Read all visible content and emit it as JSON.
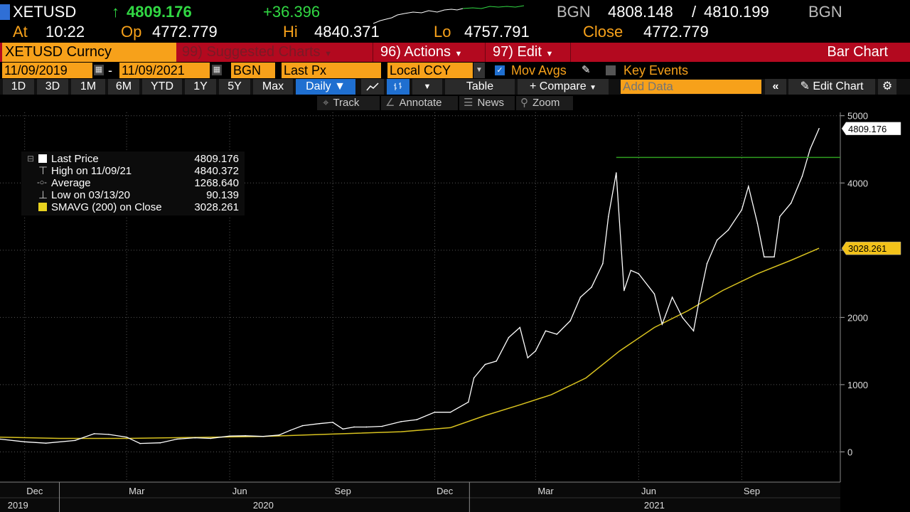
{
  "header": {
    "ticker": "XETUSD",
    "last_price": "4809.176",
    "change": "+36.396",
    "bid_src": "BGN",
    "bid_ask": "4808.148",
    "ask": "4810.199",
    "ask_src": "BGN",
    "time_label": "At",
    "time": "10:22",
    "open_label": "Op",
    "open": "4772.779",
    "high_label": "Hi",
    "high": "4840.371",
    "low_label": "Lo",
    "low": "4757.791",
    "close_label": "Close",
    "close": "4772.779"
  },
  "menubar": {
    "security": "XETUSD Curncy",
    "suggested": "99) Suggested Charts",
    "actions": "96) Actions",
    "edit": "97) Edit",
    "chart_type": "Bar Chart"
  },
  "settings": {
    "start_date": "11/09/2019",
    "end_date": "11/09/2021",
    "dash": "-",
    "source": "BGN",
    "field": "Last Px",
    "currency": "Local CCY",
    "mov_avgs": "Mov Avgs",
    "key_events": "Key Events"
  },
  "toolbar": {
    "periods": [
      "1D",
      "3D",
      "1M",
      "6M",
      "YTD",
      "1Y",
      "5Y",
      "Max"
    ],
    "frequency": "Daily",
    "table": "Table",
    "compare": "+ Compare",
    "add_data_placeholder": "Add Data",
    "edit_chart": "Edit Chart"
  },
  "chart_tools": {
    "track": "Track",
    "annotate": "Annotate",
    "news": "News",
    "zoom": "Zoom"
  },
  "legend": {
    "rows": [
      {
        "label": "Last Price",
        "value": "4809.176"
      },
      {
        "label": "High on 11/09/21",
        "value": "4840.372"
      },
      {
        "label": "Average",
        "value": "1268.640"
      },
      {
        "label": "Low on 03/13/20",
        "value": "90.139"
      },
      {
        "label": "SMAVG (200)  on Close",
        "value": "3028.261"
      }
    ]
  },
  "colors": {
    "amber": "#f7a11a",
    "price_line": "#ffffff",
    "sma_line": "#d8c21f",
    "resistance_line": "#2f9e1f",
    "menubar_red": "#b3091f",
    "toolbar_selected": "#1f6fd0"
  },
  "chart_data": {
    "type": "line",
    "title": "",
    "xlabel": "",
    "ylabel": "",
    "ylim": [
      -450,
      5050
    ],
    "y_ticks": [
      0,
      1000,
      2000,
      3000,
      4000,
      5000
    ],
    "x_month_labels": [
      "Dec",
      "Mar",
      "Jun",
      "Sep",
      "Dec",
      "Mar",
      "Jun",
      "Sep"
    ],
    "x_year_labels": [
      "2019",
      "2020",
      "2021"
    ],
    "last_price_tag": "4809.176",
    "sma_tag": "3028.261",
    "resistance_level": 4380,
    "series": [
      {
        "name": "Last Price",
        "x": [
          "2019-11-09",
          "2019-12-01",
          "2019-12-20",
          "2020-01-15",
          "2020-02-01",
          "2020-02-14",
          "2020-03-01",
          "2020-03-13",
          "2020-03-31",
          "2020-04-15",
          "2020-05-01",
          "2020-05-15",
          "2020-06-01",
          "2020-06-15",
          "2020-07-01",
          "2020-07-15",
          "2020-07-25",
          "2020-08-05",
          "2020-08-20",
          "2020-09-01",
          "2020-09-10",
          "2020-09-20",
          "2020-10-01",
          "2020-10-15",
          "2020-11-01",
          "2020-11-15",
          "2020-12-01",
          "2020-12-15",
          "2020-12-31",
          "2021-01-05",
          "2021-01-15",
          "2021-01-25",
          "2021-02-05",
          "2021-02-15",
          "2021-02-22",
          "2021-03-01",
          "2021-03-10",
          "2021-03-20",
          "2021-04-01",
          "2021-04-10",
          "2021-04-20",
          "2021-04-30",
          "2021-05-05",
          "2021-05-12",
          "2021-05-19",
          "2021-05-25",
          "2021-06-01",
          "2021-06-15",
          "2021-06-22",
          "2021-07-01",
          "2021-07-10",
          "2021-07-20",
          "2021-07-25",
          "2021-08-01",
          "2021-08-10",
          "2021-08-20",
          "2021-09-01",
          "2021-09-07",
          "2021-09-15",
          "2021-09-21",
          "2021-09-30",
          "2021-10-05",
          "2021-10-15",
          "2021-10-25",
          "2021-11-01",
          "2021-11-09"
        ],
        "values": [
          190,
          150,
          130,
          170,
          270,
          260,
          220,
          125,
          135,
          190,
          210,
          200,
          235,
          240,
          230,
          250,
          320,
          390,
          420,
          440,
          340,
          370,
          370,
          380,
          450,
          480,
          590,
          590,
          740,
          1100,
          1300,
          1350,
          1700,
          1850,
          1400,
          1500,
          1800,
          1750,
          1950,
          2300,
          2450,
          2800,
          3500,
          4150,
          2400,
          2700,
          2650,
          2350,
          1900,
          2300,
          2000,
          1800,
          2250,
          2800,
          3150,
          3300,
          3600,
          3950,
          3400,
          2900,
          2900,
          3500,
          3700,
          4100,
          4500,
          4809.176
        ]
      },
      {
        "name": "SMAVG (200)  on Close",
        "x": [
          "2019-11-09",
          "2020-01-01",
          "2020-03-01",
          "2020-05-01",
          "2020-07-01",
          "2020-09-01",
          "2020-11-01",
          "2020-12-15",
          "2021-01-15",
          "2021-02-15",
          "2021-03-15",
          "2021-04-15",
          "2021-05-15",
          "2021-06-15",
          "2021-07-15",
          "2021-08-15",
          "2021-09-15",
          "2021-10-15",
          "2021-11-09"
        ],
        "values": [
          220,
          200,
          200,
          215,
          230,
          265,
          300,
          360,
          540,
          700,
          850,
          1100,
          1500,
          1850,
          2100,
          2400,
          2650,
          2850,
          3028.261
        ]
      }
    ]
  }
}
